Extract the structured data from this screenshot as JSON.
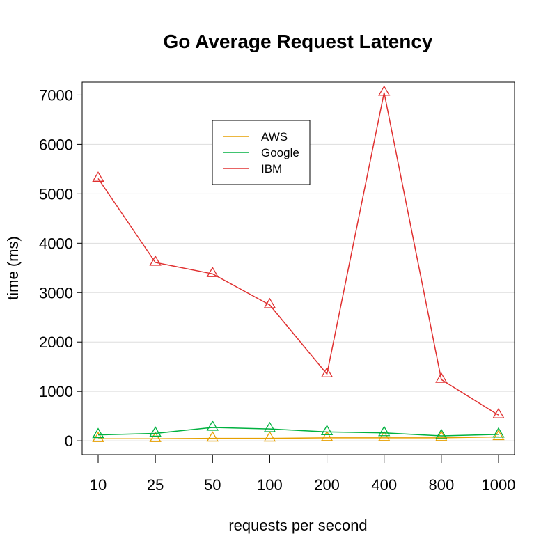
{
  "chart_data": {
    "type": "line",
    "title": "Go Average Request Latency",
    "xlabel": "requests per second",
    "ylabel": "time (ms)",
    "categories": [
      "10",
      "25",
      "50",
      "100",
      "200",
      "400",
      "800",
      "1000"
    ],
    "ylim": [
      -280,
      7260
    ],
    "yticks": [
      0,
      1000,
      2000,
      3000,
      4000,
      5000,
      6000,
      7000
    ],
    "grid": true,
    "legend_position": "top-center",
    "marker": "triangle",
    "series": [
      {
        "name": "AWS",
        "color": "#E69F00",
        "values": [
          40,
          40,
          50,
          50,
          60,
          60,
          60,
          80
        ]
      },
      {
        "name": "Google",
        "color": "#00B140",
        "values": [
          120,
          150,
          270,
          240,
          180,
          160,
          100,
          130
        ]
      },
      {
        "name": "IBM",
        "color": "#E03030",
        "values": [
          5310,
          3610,
          3380,
          2750,
          1350,
          7050,
          1240,
          520
        ]
      }
    ]
  }
}
